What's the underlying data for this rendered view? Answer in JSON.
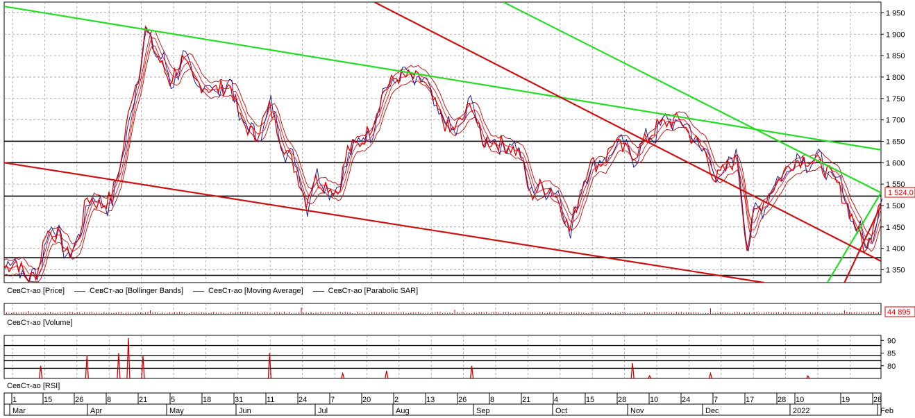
{
  "colors": {
    "background": "#ffffff",
    "grid": "#9a9a9a",
    "price": "#dd0000",
    "ma": "#ee2222",
    "bands": "#c00000",
    "sar": "#1a1a9a",
    "green_trend": "#22dd22",
    "red_trend": "#cc1111",
    "level": "#000000",
    "volume": "#cc0000",
    "rsi": "#cc0000"
  },
  "legend": {
    "price": "СевСт-ао [Price]",
    "bands": "СевСт-ао [Bollinger Bands]",
    "ma": "СевСт-ао [Moving Average]",
    "sar": "СевСт-ао [Parabolic SAR]",
    "volume": "СевСт-ао [Volume]",
    "rsi": "СевСт-ао [RSI]"
  },
  "price_axis": {
    "ticks": [
      "1 950",
      "1 900",
      "1 850",
      "1 800",
      "1 750",
      "1 700",
      "1 650",
      "1 600",
      "1 550",
      "1 500",
      "1 450",
      "1 400",
      "1 350"
    ],
    "current_label": "1 524,0"
  },
  "volume_axis": {
    "current_label": "44 895"
  },
  "rsi_axis": {
    "ticks": [
      "90",
      "85",
      "80"
    ]
  },
  "time_axis": {
    "days": [
      "1",
      "15",
      "26",
      "8",
      "21",
      "5",
      "18",
      "31",
      "11",
      "24",
      "7",
      "20",
      "2",
      "13",
      "26",
      "8",
      "21",
      "4",
      "15",
      "28",
      "10",
      "24",
      "7",
      "17",
      "28",
      "10",
      "19",
      "28"
    ],
    "months": [
      "Mar",
      "Apr",
      "May",
      "Jun",
      "Jul",
      "Aug",
      "Sep",
      "Oct",
      "Nov",
      "Dec",
      "2022",
      "Feb"
    ]
  },
  "chart_data": [
    {
      "type": "line",
      "panel": "price",
      "ylim": [
        1320,
        1975
      ],
      "xlim": [
        0,
        360
      ],
      "series_names": [
        "СевСт-ао [Price]",
        "СевСт-ао [Bollinger Bands]",
        "СевСт-ао [Moving Average]",
        "СевСт-ао [Parabolic SAR]"
      ],
      "price_anchors": [
        [
          0,
          1355
        ],
        [
          5,
          1370
        ],
        [
          10,
          1325
        ],
        [
          14,
          1350
        ],
        [
          17,
          1440
        ],
        [
          22,
          1430
        ],
        [
          26,
          1385
        ],
        [
          30,
          1410
        ],
        [
          34,
          1520
        ],
        [
          40,
          1500
        ],
        [
          44,
          1520
        ],
        [
          48,
          1600
        ],
        [
          52,
          1750
        ],
        [
          55,
          1800
        ],
        [
          58,
          1910
        ],
        [
          62,
          1860
        ],
        [
          68,
          1790
        ],
        [
          73,
          1840
        ],
        [
          78,
          1790
        ],
        [
          86,
          1770
        ],
        [
          93,
          1780
        ],
        [
          97,
          1700
        ],
        [
          103,
          1660
        ],
        [
          109,
          1730
        ],
        [
          114,
          1650
        ],
        [
          120,
          1580
        ],
        [
          124,
          1510
        ],
        [
          127,
          1560
        ],
        [
          132,
          1550
        ],
        [
          137,
          1530
        ],
        [
          141,
          1630
        ],
        [
          147,
          1650
        ],
        [
          151,
          1690
        ],
        [
          156,
          1770
        ],
        [
          161,
          1800
        ],
        [
          167,
          1800
        ],
        [
          172,
          1790
        ],
        [
          178,
          1720
        ],
        [
          183,
          1670
        ],
        [
          188,
          1700
        ],
        [
          192,
          1740
        ],
        [
          196,
          1650
        ],
        [
          201,
          1650
        ],
        [
          207,
          1640
        ],
        [
          212,
          1620
        ],
        [
          216,
          1520
        ],
        [
          220,
          1545
        ],
        [
          224,
          1540
        ],
        [
          228,
          1510
        ],
        [
          232,
          1440
        ],
        [
          236,
          1520
        ],
        [
          240,
          1600
        ],
        [
          244,
          1595
        ],
        [
          247,
          1610
        ],
        [
          250,
          1650
        ],
        [
          254,
          1630
        ],
        [
          259,
          1620
        ],
        [
          263,
          1650
        ],
        [
          268,
          1685
        ],
        [
          273,
          1695
        ],
        [
          278,
          1700
        ],
        [
          282,
          1660
        ],
        [
          287,
          1635
        ],
        [
          292,
          1560
        ],
        [
          297,
          1590
        ],
        [
          301,
          1610
        ],
        [
          305,
          1400
        ],
        [
          308,
          1480
        ],
        [
          313,
          1520
        ],
        [
          318,
          1560
        ],
        [
          323,
          1600
        ],
        [
          328,
          1610
        ],
        [
          333,
          1605
        ],
        [
          338,
          1580
        ],
        [
          342,
          1550
        ],
        [
          346,
          1500
        ],
        [
          350,
          1450
        ],
        [
          354,
          1390
        ],
        [
          358,
          1490
        ],
        [
          360,
          1524
        ]
      ],
      "levels": [
        1650,
        1600,
        1522,
        1378,
        1337
      ],
      "trend_lines": [
        {
          "color": "green",
          "from": [
            0,
            1965
          ],
          "to": [
            360,
            1630
          ]
        },
        {
          "color": "green",
          "from": [
            205,
            1975
          ],
          "to": [
            360,
            1530
          ]
        },
        {
          "color": "green",
          "from": [
            338,
            1320
          ],
          "to": [
            360,
            1530
          ]
        },
        {
          "color": "red",
          "from": [
            0,
            1600
          ],
          "to": [
            312,
            1320
          ]
        },
        {
          "color": "red",
          "from": [
            152,
            1975
          ],
          "to": [
            360,
            1370
          ]
        },
        {
          "color": "red",
          "from": [
            345,
            1320
          ],
          "to": [
            360,
            1500
          ]
        }
      ]
    },
    {
      "type": "bar",
      "panel": "volume",
      "last_value": 44895,
      "spikes": [
        [
          10,
          4
        ],
        [
          60,
          5
        ],
        [
          122,
          9
        ],
        [
          185,
          6
        ],
        [
          290,
          8
        ],
        [
          345,
          5
        ]
      ]
    },
    {
      "type": "line",
      "panel": "rsi",
      "ylim": [
        75,
        92
      ],
      "levels": [
        88,
        84,
        82,
        79
      ],
      "spikes": [
        [
          15,
          80
        ],
        [
          34,
          84
        ],
        [
          47,
          85
        ],
        [
          51,
          91
        ],
        [
          57,
          84
        ],
        [
          109,
          85
        ],
        [
          139,
          77
        ],
        [
          157,
          78
        ],
        [
          192,
          80
        ],
        [
          258,
          81
        ],
        [
          265,
          76
        ],
        [
          290,
          77
        ],
        [
          330,
          76
        ]
      ]
    }
  ]
}
